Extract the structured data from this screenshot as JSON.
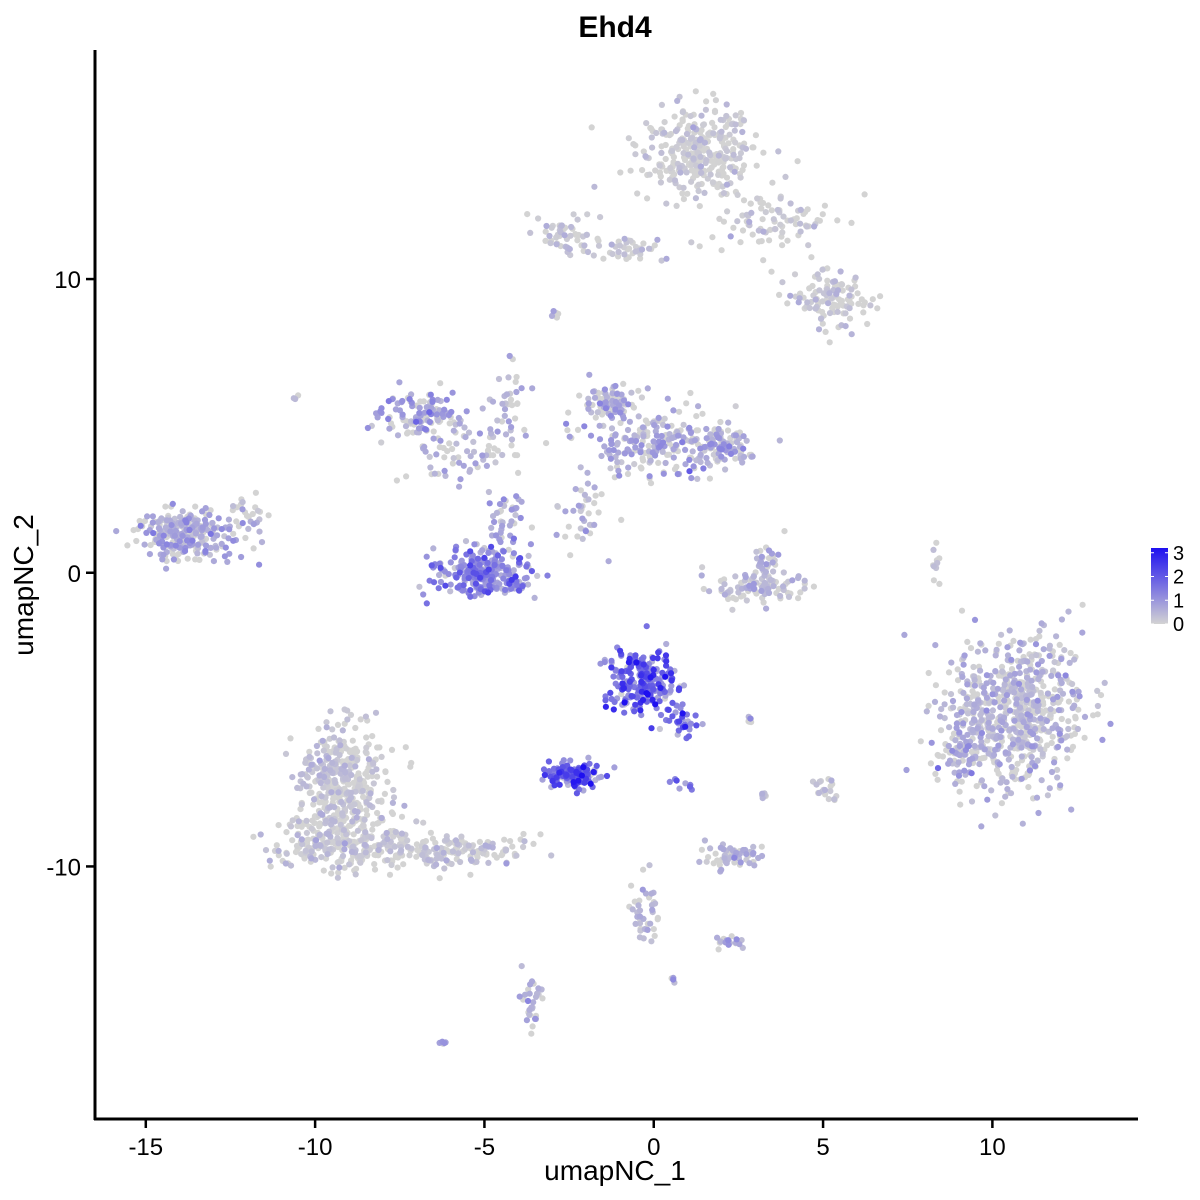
{
  "chart_data": {
    "type": "scatter",
    "title": "Ehd4",
    "xlabel": "umapNC_1",
    "ylabel": "umapNC_2",
    "xlim": [
      -16.5,
      14.3
    ],
    "ylim": [
      -18.6,
      17.8
    ],
    "x_ticks": [
      -15,
      -10,
      -5,
      0,
      5,
      10
    ],
    "y_ticks": [
      -10,
      0,
      10
    ],
    "x_tick_labels": [
      "-15",
      "-10",
      "-5",
      "0",
      "5",
      "10"
    ],
    "y_tick_labels": [
      "-10",
      "0",
      "10"
    ],
    "grid": false,
    "color_scale": {
      "low": "#d3d3d3",
      "high": "#1e10f0",
      "min": 0,
      "max": 3.2,
      "ticks": [
        0,
        1,
        2,
        3
      ],
      "tick_labels": [
        "0",
        "1",
        "2",
        "3"
      ],
      "legend_position": "right"
    },
    "clusters": [
      {
        "x": 1.3,
        "y": 14.3,
        "sx": 1.2,
        "sy": 1.0,
        "n": 320,
        "expr": 0.2
      },
      {
        "x": 3.5,
        "y": 12.0,
        "sx": 1.5,
        "sy": 0.8,
        "n": 90,
        "expr": 0.3
      },
      {
        "x": 5.3,
        "y": 9.3,
        "sx": 0.9,
        "sy": 0.6,
        "n": 110,
        "expr": 0.5
      },
      {
        "x": -2.7,
        "y": 11.4,
        "sx": 0.6,
        "sy": 0.5,
        "n": 50,
        "expr": 0.6
      },
      {
        "x": -0.7,
        "y": 11.0,
        "sx": 0.9,
        "sy": 0.3,
        "n": 40,
        "expr": 0.4
      },
      {
        "x": -2.9,
        "y": 8.8,
        "sx": 0.1,
        "sy": 0.1,
        "n": 6,
        "expr": 1.2
      },
      {
        "x": -6.9,
        "y": 5.4,
        "sx": 0.7,
        "sy": 0.6,
        "n": 110,
        "expr": 1.4
      },
      {
        "x": -5.5,
        "y": 4.2,
        "sx": 1.2,
        "sy": 0.9,
        "n": 80,
        "expr": 0.9
      },
      {
        "x": -4.3,
        "y": 6.0,
        "sx": 0.5,
        "sy": 1.0,
        "n": 30,
        "expr": 0.9
      },
      {
        "x": -1.4,
        "y": 5.8,
        "sx": 0.5,
        "sy": 0.4,
        "n": 90,
        "expr": 1.3
      },
      {
        "x": 0.0,
        "y": 4.5,
        "sx": 1.3,
        "sy": 0.9,
        "n": 200,
        "expr": 1.2
      },
      {
        "x": 2.0,
        "y": 4.2,
        "sx": 0.6,
        "sy": 0.5,
        "n": 110,
        "expr": 1.3
      },
      {
        "x": -2.2,
        "y": 2.4,
        "sx": 0.5,
        "sy": 0.8,
        "n": 30,
        "expr": 0.9
      },
      {
        "x": -13.8,
        "y": 1.3,
        "sx": 0.9,
        "sy": 0.6,
        "n": 260,
        "expr": 1.3
      },
      {
        "x": -12.0,
        "y": 2.0,
        "sx": 0.4,
        "sy": 0.5,
        "n": 25,
        "expr": 0.9
      },
      {
        "x": -5.0,
        "y": 0.0,
        "sx": 1.0,
        "sy": 0.5,
        "n": 260,
        "expr": 2.0
      },
      {
        "x": -4.3,
        "y": 1.7,
        "sx": 0.4,
        "sy": 0.6,
        "n": 40,
        "expr": 1.3
      },
      {
        "x": -2.1,
        "y": 1.3,
        "sx": 0.4,
        "sy": 0.4,
        "n": 10,
        "expr": 1.0
      },
      {
        "x": 3.3,
        "y": 0.3,
        "sx": 0.3,
        "sy": 0.7,
        "n": 40,
        "expr": 1.0
      },
      {
        "x": 3.0,
        "y": -0.5,
        "sx": 1.0,
        "sy": 0.4,
        "n": 90,
        "expr": 0.6
      },
      {
        "x": 8.3,
        "y": 0.2,
        "sx": 0.1,
        "sy": 0.6,
        "n": 10,
        "expr": 0.3
      },
      {
        "x": 10.7,
        "y": -4.8,
        "sx": 1.3,
        "sy": 1.7,
        "n": 700,
        "expr": 0.9
      },
      {
        "x": 9.0,
        "y": -6.2,
        "sx": 0.5,
        "sy": 0.8,
        "n": 60,
        "expr": 1.4
      },
      {
        "x": -0.4,
        "y": -3.7,
        "sx": 0.7,
        "sy": 0.7,
        "n": 240,
        "expr": 2.8
      },
      {
        "x": 0.9,
        "y": -5.1,
        "sx": 0.3,
        "sy": 0.4,
        "n": 30,
        "expr": 2.4
      },
      {
        "x": -2.4,
        "y": -6.9,
        "sx": 0.5,
        "sy": 0.3,
        "n": 150,
        "expr": 2.9
      },
      {
        "x": -9.2,
        "y": -7.2,
        "sx": 0.9,
        "sy": 1.3,
        "n": 400,
        "expr": 0.4
      },
      {
        "x": -9.0,
        "y": -9.3,
        "sx": 1.5,
        "sy": 0.6,
        "n": 260,
        "expr": 0.4
      },
      {
        "x": -5.8,
        "y": -9.5,
        "sx": 1.3,
        "sy": 0.4,
        "n": 130,
        "expr": 0.4
      },
      {
        "x": 2.3,
        "y": -9.6,
        "sx": 0.5,
        "sy": 0.3,
        "n": 60,
        "expr": 1.0
      },
      {
        "x": -0.2,
        "y": -11.6,
        "sx": 0.3,
        "sy": 0.8,
        "n": 40,
        "expr": 0.9
      },
      {
        "x": 2.3,
        "y": -12.6,
        "sx": 0.3,
        "sy": 0.2,
        "n": 20,
        "expr": 1.2
      },
      {
        "x": -3.6,
        "y": -14.5,
        "sx": 0.2,
        "sy": 0.6,
        "n": 30,
        "expr": 1.0
      },
      {
        "x": 5.1,
        "y": -7.4,
        "sx": 0.3,
        "sy": 0.3,
        "n": 20,
        "expr": 0.6
      },
      {
        "x": 3.3,
        "y": -7.6,
        "sx": 0.1,
        "sy": 0.1,
        "n": 6,
        "expr": 0.5
      },
      {
        "x": 2.8,
        "y": -5.0,
        "sx": 0.1,
        "sy": 0.1,
        "n": 6,
        "expr": 1.0
      },
      {
        "x": 0.6,
        "y": -13.8,
        "sx": 0.05,
        "sy": 0.1,
        "n": 4,
        "expr": 1.3
      },
      {
        "x": -6.2,
        "y": -16.0,
        "sx": 0.1,
        "sy": 0.1,
        "n": 5,
        "expr": 1.0
      },
      {
        "x": -10.6,
        "y": 6.0,
        "sx": 0.05,
        "sy": 0.1,
        "n": 3,
        "expr": 0.7
      },
      {
        "x": 0.9,
        "y": -7.2,
        "sx": 0.3,
        "sy": 0.2,
        "n": 8,
        "expr": 2.4
      }
    ]
  }
}
